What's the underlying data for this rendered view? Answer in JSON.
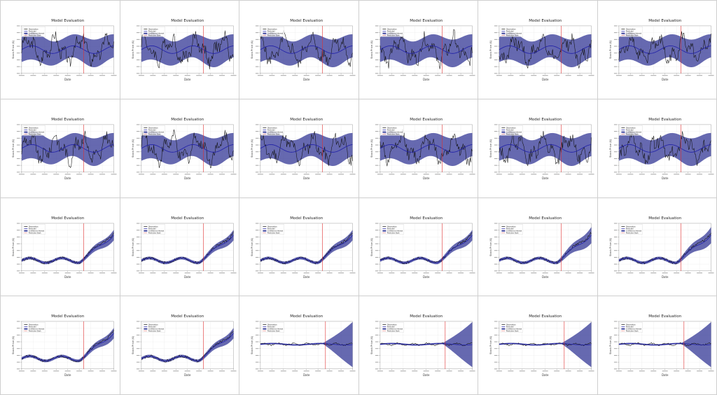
{
  "colors": {
    "observation": "#111111",
    "predicted": "#1f1fa8",
    "band_fill": "#3b3f9a",
    "prediction_start": "#e03030",
    "grid": "#e6e6e6"
  },
  "legend_labels": [
    "Observation",
    "Predicted",
    "Confidence Interval",
    "Prediction Start"
  ],
  "chart_data": [
    {
      "type": "line",
      "variant": "volatile",
      "title": "Model Evaluation",
      "xlabel": "Date",
      "ylabel": "Stock Price ($)"
    },
    {
      "type": "line",
      "variant": "volatile",
      "title": "Model Evaluation",
      "xlabel": "Date",
      "ylabel": "Stock Price ($)"
    },
    {
      "type": "line",
      "variant": "volatile",
      "title": "Model Evaluation",
      "xlabel": "Date",
      "ylabel": "Stock Price ($)"
    },
    {
      "type": "line",
      "variant": "volatile",
      "title": "Model Evaluation",
      "xlabel": "Date",
      "ylabel": "Stock Price ($)"
    },
    {
      "type": "line",
      "variant": "volatile",
      "title": "Model Evaluation",
      "xlabel": "Date",
      "ylabel": "Stock Price ($)"
    },
    {
      "type": "line",
      "variant": "volatile",
      "title": "Model Evaluation",
      "xlabel": "Date",
      "ylabel": "Stock Price ($)"
    },
    {
      "type": "line",
      "variant": "volatile",
      "title": "Model Evaluation",
      "xlabel": "Date",
      "ylabel": "Stock Price ($)"
    },
    {
      "type": "line",
      "variant": "volatile",
      "title": "Model Evaluation",
      "xlabel": "Date",
      "ylabel": "Stock Price ($)"
    },
    {
      "type": "line",
      "variant": "volatile",
      "title": "Model Evaluation",
      "xlabel": "Date",
      "ylabel": "Stock Price ($)"
    },
    {
      "type": "line",
      "variant": "volatile",
      "title": "Model Evaluation",
      "xlabel": "Date",
      "ylabel": "Stock Price ($)"
    },
    {
      "type": "line",
      "variant": "volatile",
      "title": "Model Evaluation",
      "xlabel": "Date",
      "ylabel": "Stock Price ($)"
    },
    {
      "type": "line",
      "variant": "volatile",
      "title": "Model Evaluation",
      "xlabel": "Date",
      "ylabel": "Stock Price ($)"
    },
    {
      "type": "line",
      "variant": "trend",
      "title": "Model Evaluation",
      "xlabel": "Date",
      "ylabel": "Stock Price ($)"
    },
    {
      "type": "line",
      "variant": "trend",
      "title": "Model Evaluation",
      "xlabel": "Date",
      "ylabel": "Stock Price ($)"
    },
    {
      "type": "line",
      "variant": "trend",
      "title": "Model Evaluation",
      "xlabel": "Date",
      "ylabel": "Stock Price ($)"
    },
    {
      "type": "line",
      "variant": "trend",
      "title": "Model Evaluation",
      "xlabel": "Date",
      "ylabel": "Stock Price ($)"
    },
    {
      "type": "line",
      "variant": "trend_wide",
      "title": "Model Evaluation",
      "xlabel": "Date",
      "ylabel": "Stock Price ($)"
    },
    {
      "type": "line",
      "variant": "trend_wide",
      "title": "Model Evaluation",
      "xlabel": "Date",
      "ylabel": "Stock Price ($)"
    },
    {
      "type": "line",
      "variant": "trend",
      "title": "Model Evaluation",
      "xlabel": "Date",
      "ylabel": "Stock Price ($)"
    },
    {
      "type": "line",
      "variant": "trend",
      "title": "Model Evaluation",
      "xlabel": "Date",
      "ylabel": "Stock Price ($)"
    },
    {
      "type": "line",
      "variant": "funnel",
      "title": "Model Evaluation",
      "xlabel": "Date",
      "ylabel": "Stock Price ($)"
    },
    {
      "type": "line",
      "variant": "funnel",
      "title": "Model Evaluation",
      "xlabel": "Date",
      "ylabel": "Stock Price ($)"
    },
    {
      "type": "line",
      "variant": "funnel",
      "title": "Model Evaluation",
      "xlabel": "Date",
      "ylabel": "Stock Price ($)"
    },
    {
      "type": "line",
      "variant": "funnel",
      "title": "Model Evaluation",
      "xlabel": "Date",
      "ylabel": "Stock Price ($)"
    }
  ]
}
